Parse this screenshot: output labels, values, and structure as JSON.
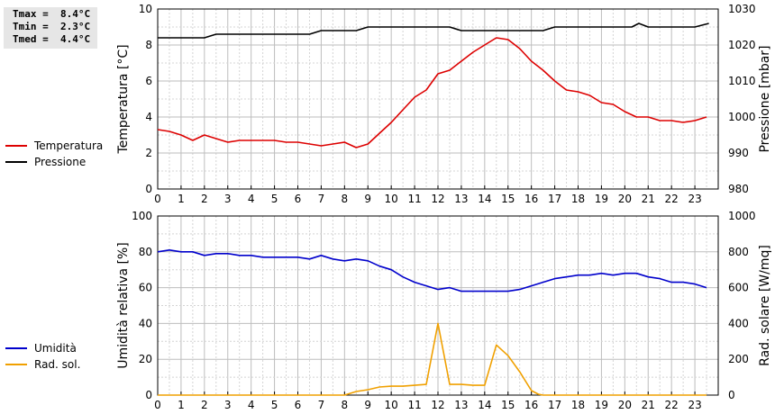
{
  "stats": {
    "tmax": "Tmax =  8.4°C",
    "tmin": "Tmin =  2.3°C",
    "tmed": "Tmed =  4.4°C"
  },
  "chart_data": [
    {
      "type": "line",
      "title": "",
      "xlabel": "",
      "ylabel": "Temperatura [°C]",
      "y2label": "Pressione [mbar]",
      "xlim": [
        0,
        24
      ],
      "ylim": [
        0,
        10
      ],
      "y2lim": [
        980,
        1030
      ],
      "x_ticks": [
        0,
        1,
        2,
        3,
        4,
        5,
        6,
        7,
        8,
        9,
        10,
        11,
        12,
        13,
        14,
        15,
        16,
        17,
        18,
        19,
        20,
        21,
        22,
        23
      ],
      "y_ticks": [
        0,
        2,
        4,
        6,
        8,
        10
      ],
      "y2_ticks": [
        980,
        990,
        1000,
        1010,
        1020,
        1030
      ],
      "grid": true,
      "legend_position": "left",
      "colors": {
        "temperatura": "#dd0000",
        "pressione": "#000000"
      },
      "series": [
        {
          "name": "Temperatura",
          "axis": "left",
          "x": [
            0,
            0.5,
            1,
            1.5,
            2,
            2.5,
            3,
            3.5,
            4,
            4.5,
            5,
            5.5,
            6,
            6.5,
            7,
            7.5,
            8,
            8.5,
            9,
            9.5,
            10,
            10.5,
            11,
            11.5,
            12,
            12.5,
            13,
            13.5,
            14,
            14.5,
            15,
            15.5,
            16,
            16.5,
            17,
            17.5,
            18,
            18.5,
            19,
            19.5,
            20,
            20.5,
            21,
            21.5,
            22,
            22.5,
            23,
            23.5
          ],
          "values": [
            3.3,
            3.2,
            3.0,
            2.7,
            3.0,
            2.8,
            2.6,
            2.7,
            2.7,
            2.7,
            2.7,
            2.6,
            2.6,
            2.5,
            2.4,
            2.5,
            2.6,
            2.3,
            2.5,
            3.1,
            3.7,
            4.4,
            5.1,
            5.5,
            6.4,
            6.6,
            7.1,
            7.6,
            8.0,
            8.4,
            8.3,
            7.8,
            7.1,
            6.6,
            6.0,
            5.5,
            5.4,
            5.2,
            4.8,
            4.7,
            4.3,
            4.0,
            4.0,
            3.8,
            3.8,
            3.7,
            3.8,
            4.0
          ]
        },
        {
          "name": "Pressione",
          "axis": "right",
          "x": [
            0,
            2,
            2.5,
            6.5,
            7,
            8.5,
            9,
            12.5,
            13,
            16.5,
            17,
            20.3,
            20.6,
            21,
            23,
            23.6
          ],
          "values": [
            1022,
            1022,
            1023,
            1023,
            1024,
            1024,
            1025,
            1025,
            1024,
            1024,
            1025,
            1025,
            1026,
            1025,
            1025,
            1026
          ]
        }
      ]
    },
    {
      "type": "line",
      "title": "",
      "xlabel": "",
      "ylabel": "Umidità relativa [%]",
      "y2label": "Rad. solare [W/mq]",
      "xlim": [
        0,
        24
      ],
      "ylim": [
        0,
        100
      ],
      "y2lim": [
        0,
        1000
      ],
      "x_ticks": [
        0,
        1,
        2,
        3,
        4,
        5,
        6,
        7,
        8,
        9,
        10,
        11,
        12,
        13,
        14,
        15,
        16,
        17,
        18,
        19,
        20,
        21,
        22,
        23
      ],
      "y_ticks": [
        0,
        20,
        40,
        60,
        80,
        100
      ],
      "y2_ticks": [
        0,
        200,
        400,
        600,
        800,
        1000
      ],
      "grid": true,
      "legend_position": "left",
      "colors": {
        "umidita": "#0000cc",
        "radiazione": "#f0a000"
      },
      "series": [
        {
          "name": "Umidità",
          "axis": "left",
          "x": [
            0,
            0.5,
            1,
            1.5,
            2,
            2.5,
            3,
            3.5,
            4,
            4.5,
            5,
            5.5,
            6,
            6.5,
            7,
            7.5,
            8,
            8.5,
            9,
            9.5,
            10,
            10.5,
            11,
            11.5,
            12,
            12.5,
            13,
            13.5,
            14,
            14.5,
            15,
            15.5,
            16,
            16.5,
            17,
            17.5,
            18,
            18.5,
            19,
            19.5,
            20,
            20.5,
            21,
            21.5,
            22,
            22.5,
            23,
            23.5
          ],
          "values": [
            80,
            81,
            80,
            80,
            78,
            79,
            79,
            78,
            78,
            77,
            77,
            77,
            77,
            76,
            78,
            76,
            75,
            76,
            75,
            72,
            70,
            66,
            63,
            61,
            59,
            60,
            58,
            58,
            58,
            58,
            58,
            59,
            61,
            63,
            65,
            66,
            67,
            67,
            68,
            67,
            68,
            68,
            66,
            65,
            63,
            63,
            62,
            60
          ]
        },
        {
          "name": "Rad. sol.",
          "axis": "right",
          "x": [
            0,
            7,
            8,
            8.5,
            9,
            9.5,
            10,
            10.5,
            11,
            11.5,
            12,
            12.5,
            13,
            13.5,
            14,
            14.5,
            15,
            15.5,
            16,
            16.3,
            16.5,
            23.5
          ],
          "values": [
            0,
            0,
            0,
            20,
            30,
            45,
            50,
            50,
            55,
            60,
            400,
            60,
            60,
            55,
            55,
            280,
            220,
            130,
            25,
            5,
            0,
            0
          ]
        }
      ]
    }
  ]
}
